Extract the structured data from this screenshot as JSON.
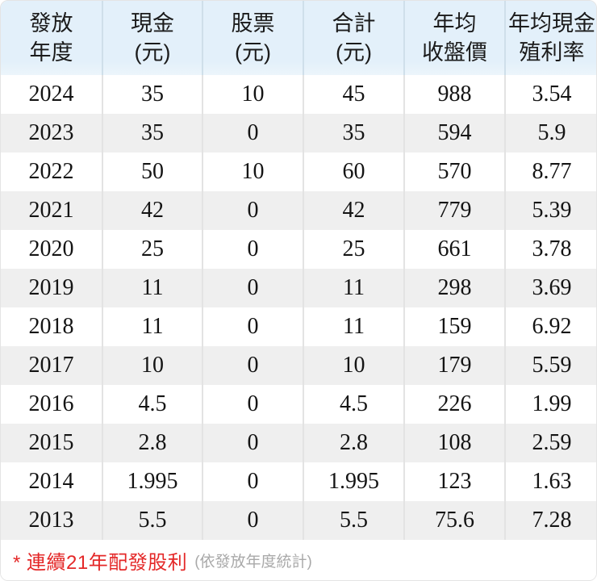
{
  "colors": {
    "header_bg": "#e3f0fa",
    "header_divider": "#cfdfea",
    "body_divider": "#e3e3e3",
    "stripe_bg": "#efefef",
    "text": "#141414",
    "footnote_red": "#e42828",
    "footnote_gray": "#a9a9a9"
  },
  "table": {
    "headers": [
      {
        "line1": "發放",
        "line2": "年度"
      },
      {
        "line1": "現金",
        "line2": "(元)"
      },
      {
        "line1": "股票",
        "line2": "(元)"
      },
      {
        "line1": "合計",
        "line2": "(元)"
      },
      {
        "line1": "年均",
        "line2": "收盤價"
      },
      {
        "line1": "年均現金",
        "line2": "殖利率"
      }
    ],
    "rows": [
      [
        "2024",
        "35",
        "10",
        "45",
        "988",
        "3.54"
      ],
      [
        "2023",
        "35",
        "0",
        "35",
        "594",
        "5.9"
      ],
      [
        "2022",
        "50",
        "10",
        "60",
        "570",
        "8.77"
      ],
      [
        "2021",
        "42",
        "0",
        "42",
        "779",
        "5.39"
      ],
      [
        "2020",
        "25",
        "0",
        "25",
        "661",
        "3.78"
      ],
      [
        "2019",
        "11",
        "0",
        "11",
        "298",
        "3.69"
      ],
      [
        "2018",
        "11",
        "0",
        "11",
        "159",
        "6.92"
      ],
      [
        "2017",
        "10",
        "0",
        "10",
        "179",
        "5.59"
      ],
      [
        "2016",
        "4.5",
        "0",
        "4.5",
        "226",
        "1.99"
      ],
      [
        "2015",
        "2.8",
        "0",
        "2.8",
        "108",
        "2.59"
      ],
      [
        "2014",
        "1.995",
        "0",
        "1.995",
        "123",
        "1.63"
      ],
      [
        "2013",
        "5.5",
        "0",
        "5.5",
        "75.6",
        "7.28"
      ]
    ]
  },
  "footnote": {
    "main": "* 連續21年配發股利",
    "sub": "(依發放年度統計)"
  },
  "chart_data": {
    "type": "table",
    "columns": [
      "發放年度",
      "現金(元)",
      "股票(元)",
      "合計(元)",
      "年均收盤價",
      "年均現金殖利率"
    ],
    "rows": [
      [
        2024,
        35,
        10,
        45,
        988,
        3.54
      ],
      [
        2023,
        35,
        0,
        35,
        594,
        5.9
      ],
      [
        2022,
        50,
        10,
        60,
        570,
        8.77
      ],
      [
        2021,
        42,
        0,
        42,
        779,
        5.39
      ],
      [
        2020,
        25,
        0,
        25,
        661,
        3.78
      ],
      [
        2019,
        11,
        0,
        11,
        298,
        3.69
      ],
      [
        2018,
        11,
        0,
        11,
        159,
        6.92
      ],
      [
        2017,
        10,
        0,
        10,
        179,
        5.59
      ],
      [
        2016,
        4.5,
        0,
        4.5,
        226,
        1.99
      ],
      [
        2015,
        2.8,
        0,
        2.8,
        108,
        2.59
      ],
      [
        2014,
        1.995,
        0,
        1.995,
        123,
        1.63
      ],
      [
        2013,
        5.5,
        0,
        5.5,
        75.6,
        7.28
      ]
    ],
    "annotations": [
      "* 連續21年配發股利 (依發放年度統計)"
    ],
    "layout": {
      "row_striping": true,
      "stripe_color": "#efefef",
      "header_color": "#e3f0fa"
    }
  }
}
